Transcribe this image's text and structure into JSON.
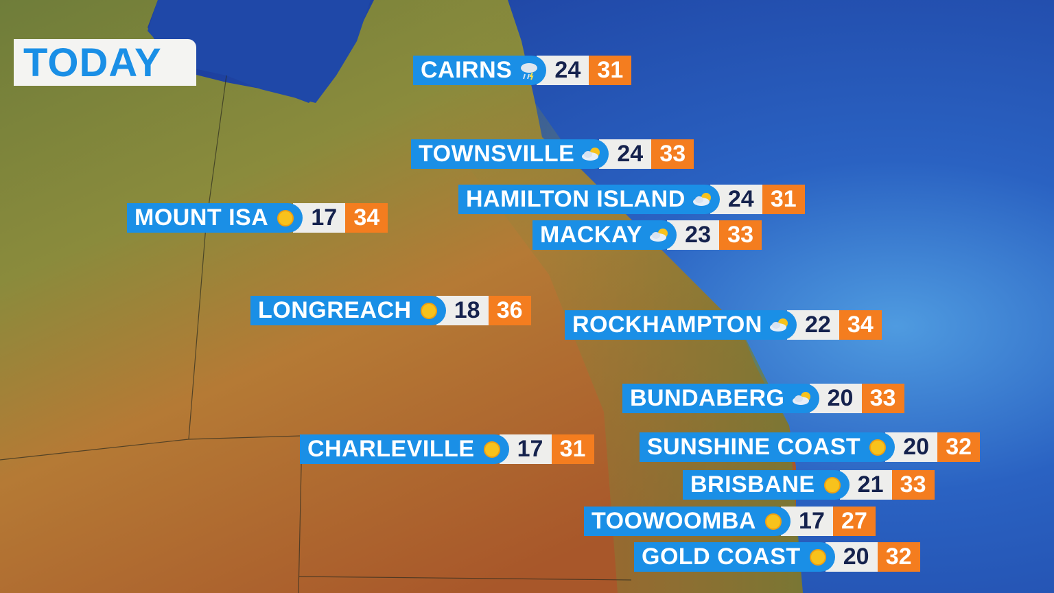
{
  "title": "TODAY",
  "colors": {
    "label_blue": "#1a8fe6",
    "max_orange": "#f47d1f",
    "min_bg": "#eeeeec",
    "min_text": "#15224d"
  },
  "cities": [
    {
      "name": "CAIRNS",
      "icon": "storm-cloud-rain-icon",
      "min": "24",
      "max": "31"
    },
    {
      "name": "TOWNSVILLE",
      "icon": "partly-cloudy-icon",
      "min": "24",
      "max": "33"
    },
    {
      "name": "HAMILTON ISLAND",
      "icon": "partly-cloudy-icon",
      "min": "24",
      "max": "31"
    },
    {
      "name": "MACKAY",
      "icon": "partly-cloudy-icon",
      "min": "23",
      "max": "33"
    },
    {
      "name": "MOUNT ISA",
      "icon": "sun-icon",
      "min": "17",
      "max": "34"
    },
    {
      "name": "LONGREACH",
      "icon": "sun-icon",
      "min": "18",
      "max": "36"
    },
    {
      "name": "ROCKHAMPTON",
      "icon": "partly-cloudy-icon",
      "min": "22",
      "max": "34"
    },
    {
      "name": "BUNDABERG",
      "icon": "partly-cloudy-icon",
      "min": "20",
      "max": "33"
    },
    {
      "name": "CHARLEVILLE",
      "icon": "sun-icon",
      "min": "17",
      "max": "31"
    },
    {
      "name": "SUNSHINE COAST",
      "icon": "sun-icon",
      "min": "20",
      "max": "32"
    },
    {
      "name": "BRISBANE",
      "icon": "sun-icon",
      "min": "21",
      "max": "33"
    },
    {
      "name": "TOOWOOMBA",
      "icon": "sun-icon",
      "min": "17",
      "max": "27"
    },
    {
      "name": "GOLD COAST",
      "icon": "sun-icon",
      "min": "20",
      "max": "32"
    }
  ]
}
